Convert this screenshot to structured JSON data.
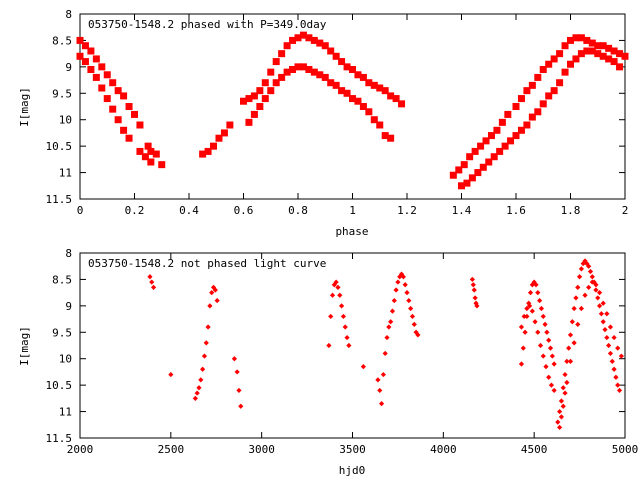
{
  "chart_data": [
    {
      "type": "scatter",
      "title": "053750-1548.2 phased with P=349.0day",
      "xlabel": "phase",
      "ylabel": "I[mag]",
      "xlim": [
        0,
        2
      ],
      "ylim": [
        11.5,
        8
      ],
      "y_inverted": true,
      "xticks": [
        "0",
        "0.2",
        "0.4",
        "0.6",
        "0.8",
        "1",
        "1.2",
        "1.4",
        "1.6",
        "1.8",
        "2"
      ],
      "yticks": [
        "8",
        "8.5",
        "9",
        "9.5",
        "10",
        "10.5",
        "11",
        "11.5"
      ],
      "grid": false,
      "marker_color": "#ff0000",
      "marker": "filled square",
      "series": [
        {
          "x": [
            0.0,
            0.02,
            0.04,
            0.06,
            0.08,
            0.1,
            0.12,
            0.14,
            0.16,
            0.18,
            0.2,
            0.22,
            0.25,
            0.26,
            0.28,
            0.3,
            0.45,
            0.47,
            0.49,
            0.51,
            0.53,
            0.55,
            0.6,
            0.62,
            0.64,
            0.66,
            0.68,
            0.7,
            0.72,
            0.74,
            0.76,
            0.78,
            0.8,
            0.82,
            0.84,
            0.86,
            0.88,
            0.9,
            0.92,
            0.94,
            0.96,
            0.98,
            1.0,
            1.02,
            1.04,
            1.06,
            1.08,
            1.1,
            1.12,
            1.14,
            1.16,
            1.18,
            1.37,
            1.39,
            1.41,
            1.43,
            1.45,
            1.47,
            1.49,
            1.51,
            1.53,
            1.55,
            1.57,
            1.6,
            1.62,
            1.64,
            1.66,
            1.68,
            1.7,
            1.72,
            1.74,
            1.76,
            1.78,
            1.8,
            1.82,
            1.84,
            1.86,
            1.88,
            1.9,
            1.92,
            1.94,
            1.96,
            1.98,
            2.0
          ],
          "y": [
            8.5,
            8.6,
            8.7,
            8.85,
            9.0,
            9.15,
            9.3,
            9.45,
            9.55,
            9.75,
            9.9,
            10.1,
            10.5,
            10.6,
            10.65,
            10.85,
            10.65,
            10.6,
            10.5,
            10.35,
            10.25,
            10.1,
            9.65,
            9.6,
            9.55,
            9.45,
            9.3,
            9.1,
            8.9,
            8.75,
            8.6,
            8.5,
            8.45,
            8.4,
            8.45,
            8.5,
            8.55,
            8.6,
            8.7,
            8.8,
            8.9,
            9.0,
            9.05,
            9.15,
            9.2,
            9.3,
            9.35,
            9.4,
            9.45,
            9.55,
            9.6,
            9.7,
            11.05,
            10.95,
            10.85,
            10.7,
            10.6,
            10.5,
            10.4,
            10.3,
            10.2,
            10.05,
            9.9,
            9.75,
            9.6,
            9.45,
            9.35,
            9.2,
            9.05,
            8.95,
            8.85,
            8.75,
            8.6,
            8.5,
            8.45,
            8.45,
            8.5,
            8.55,
            8.6,
            8.6,
            8.65,
            8.7,
            8.75,
            8.8
          ]
        },
        {
          "x": [
            0.0,
            0.02,
            0.04,
            0.06,
            0.08,
            0.1,
            0.12,
            0.14,
            0.16,
            0.18,
            0.22,
            0.24,
            0.26,
            0.62,
            0.64,
            0.66,
            0.68,
            0.7,
            0.72,
            0.74,
            0.76,
            0.78,
            0.8,
            0.82,
            0.84,
            0.86,
            0.88,
            0.9,
            0.92,
            0.94,
            0.96,
            0.98,
            1.0,
            1.02,
            1.04,
            1.06,
            1.08,
            1.1,
            1.12,
            1.14,
            1.4,
            1.42,
            1.44,
            1.46,
            1.48,
            1.5,
            1.52,
            1.54,
            1.56,
            1.58,
            1.6,
            1.62,
            1.64,
            1.66,
            1.68,
            1.7,
            1.72,
            1.74,
            1.76,
            1.78,
            1.8,
            1.82,
            1.84,
            1.86,
            1.88,
            1.9,
            1.92,
            1.94,
            1.96,
            1.98
          ],
          "y": [
            8.8,
            8.9,
            9.05,
            9.2,
            9.4,
            9.6,
            9.8,
            10.0,
            10.2,
            10.35,
            10.6,
            10.7,
            10.8,
            10.05,
            9.9,
            9.75,
            9.6,
            9.45,
            9.3,
            9.2,
            9.1,
            9.05,
            9.0,
            9.0,
            9.05,
            9.1,
            9.15,
            9.2,
            9.3,
            9.35,
            9.45,
            9.5,
            9.6,
            9.65,
            9.75,
            9.85,
            10.0,
            10.1,
            10.3,
            10.35,
            11.25,
            11.2,
            11.1,
            11.0,
            10.9,
            10.8,
            10.7,
            10.6,
            10.5,
            10.4,
            10.3,
            10.2,
            10.1,
            9.95,
            9.85,
            9.7,
            9.55,
            9.45,
            9.3,
            9.1,
            8.95,
            8.85,
            8.75,
            8.7,
            8.7,
            8.75,
            8.8,
            8.85,
            8.9,
            9.0
          ]
        }
      ]
    },
    {
      "type": "scatter",
      "title": "053750-1548.2 not phased light curve",
      "xlabel": "hjd0",
      "ylabel": "I[mag]",
      "xlim": [
        2000,
        5000
      ],
      "ylim": [
        11.5,
        8
      ],
      "y_inverted": true,
      "xticks": [
        "2000",
        "2500",
        "3000",
        "3500",
        "4000",
        "4500",
        "5000"
      ],
      "yticks": [
        "8",
        "8.5",
        "9",
        "9.5",
        "10",
        "10.5",
        "11",
        "11.5"
      ],
      "grid": false,
      "marker_color": "#ff0000",
      "marker": "filled diamond",
      "series": [
        {
          "x": [
            2385,
            2395,
            2405,
            2500,
            2635,
            2645,
            2655,
            2665,
            2675,
            2685,
            2695,
            2705,
            2715,
            2725,
            2735,
            2745,
            2755,
            2850,
            2865,
            2875,
            2885,
            3370,
            3380,
            3390,
            3400,
            3410,
            3420,
            3430,
            3440,
            3450,
            3460,
            3470,
            3480,
            3560,
            3640,
            3650,
            3660,
            3670,
            3680,
            3690,
            3700,
            3710,
            3720,
            3730,
            3740,
            3750,
            3760,
            3770,
            3780,
            3790,
            3800,
            3810,
            3820,
            3830,
            3840,
            3850,
            3860,
            4160,
            4165,
            4170,
            4175,
            4180,
            4185,
            4430,
            4440,
            4450,
            4460,
            4470,
            4480,
            4490,
            4500,
            4510,
            4520,
            4530,
            4540,
            4550,
            4560,
            4570,
            4580,
            4590,
            4600,
            4610,
            4630,
            4640,
            4650,
            4660,
            4670,
            4680,
            4690,
            4700,
            4710,
            4720,
            4730,
            4740,
            4750,
            4760,
            4770,
            4780,
            4790,
            4800,
            4810,
            4820,
            4830,
            4840,
            4850,
            4860,
            4870,
            4880,
            4890,
            4900,
            4910,
            4920,
            4930,
            4940,
            4950,
            4960,
            4970
          ],
          "y": [
            8.45,
            8.55,
            8.65,
            10.3,
            10.75,
            10.65,
            10.55,
            10.4,
            10.2,
            9.95,
            9.7,
            9.4,
            9.0,
            8.75,
            8.65,
            8.7,
            8.9,
            10.0,
            10.25,
            10.6,
            10.9,
            9.75,
            9.2,
            8.8,
            8.6,
            8.55,
            8.65,
            8.8,
            9.0,
            9.2,
            9.4,
            9.6,
            9.75,
            10.15,
            10.4,
            10.6,
            10.85,
            10.3,
            9.9,
            9.6,
            9.4,
            9.3,
            9.1,
            8.9,
            8.7,
            8.55,
            8.45,
            8.4,
            8.45,
            8.6,
            8.75,
            8.9,
            9.05,
            9.2,
            9.35,
            9.5,
            9.55,
            8.5,
            8.6,
            8.7,
            8.85,
            8.95,
            9.0,
            10.1,
            9.8,
            9.5,
            9.2,
            8.95,
            8.75,
            8.6,
            8.55,
            8.6,
            8.75,
            8.9,
            9.05,
            9.2,
            9.35,
            9.5,
            9.65,
            9.8,
            9.95,
            10.1,
            11.2,
            11.0,
            10.8,
            10.55,
            10.3,
            10.05,
            9.8,
            9.55,
            9.3,
            9.05,
            8.85,
            8.65,
            8.45,
            8.3,
            8.2,
            8.15,
            8.2,
            8.25,
            8.35,
            8.45,
            8.55,
            8.7,
            8.85,
            9.0,
            9.15,
            9.3,
            9.45,
            9.6,
            9.75,
            9.9,
            10.05,
            10.2,
            10.35,
            10.5,
            10.6
          ]
        },
        {
          "x": [
            4430,
            4445,
            4460,
            4475,
            4490,
            4505,
            4520,
            4535,
            4550,
            4565,
            4580,
            4595,
            4610,
            4640,
            4650,
            4660,
            4670,
            4680,
            4700,
            4720,
            4740,
            4760,
            4780,
            4800,
            4820,
            4840,
            4860,
            4880,
            4900,
            4920,
            4940,
            4960,
            4980
          ],
          "y": [
            9.4,
            9.2,
            9.05,
            9.0,
            9.1,
            9.3,
            9.5,
            9.75,
            9.95,
            10.15,
            10.35,
            10.5,
            10.6,
            11.3,
            11.1,
            10.9,
            10.65,
            10.45,
            10.05,
            9.7,
            9.35,
            9.05,
            8.8,
            8.65,
            8.55,
            8.6,
            8.75,
            8.95,
            9.15,
            9.4,
            9.6,
            9.8,
            9.95
          ]
        }
      ]
    }
  ]
}
